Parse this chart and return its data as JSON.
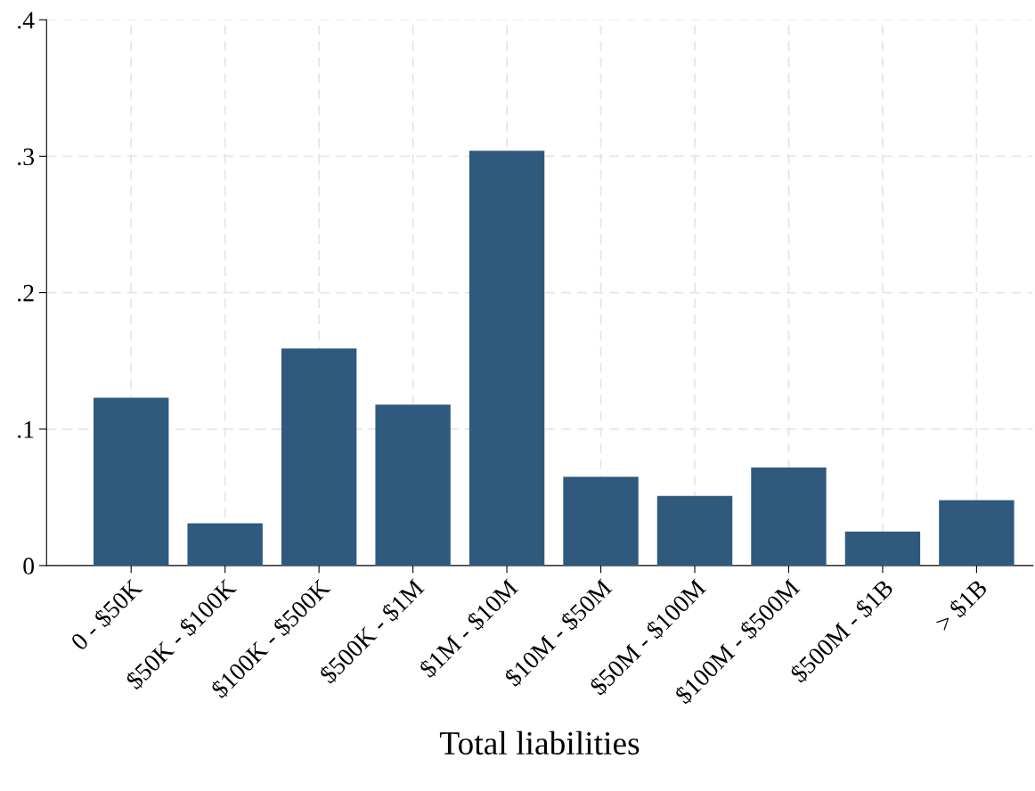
{
  "chart_data": {
    "type": "bar",
    "xlabel": "Total liabilities",
    "categories": [
      "0 - $50K",
      "$50K - $100K",
      "$100K - $500K",
      "$500K - $1M",
      "$1M - $10M",
      "$10M - $50M",
      "$50M - $100M",
      "$100M - $500M",
      "$500M - $1B",
      "> $1B"
    ],
    "values": [
      0.123,
      0.031,
      0.159,
      0.118,
      0.304,
      0.065,
      0.051,
      0.072,
      0.025,
      0.048
    ],
    "color": "#2f597d",
    "ylim": [
      0,
      0.4
    ],
    "yticks": [
      {
        "value": 0,
        "label": "0"
      },
      {
        "value": 0.1,
        "label": ".1"
      },
      {
        "value": 0.2,
        "label": ".2"
      },
      {
        "value": 0.3,
        "label": ".3"
      },
      {
        "value": 0.4,
        "label": ".4"
      }
    ],
    "grid": true
  }
}
